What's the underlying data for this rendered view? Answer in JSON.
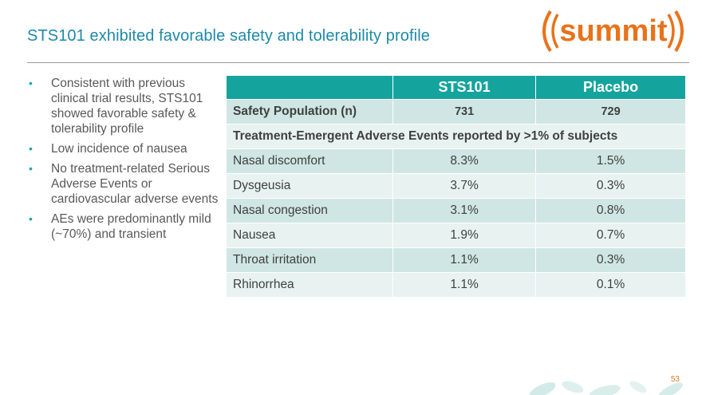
{
  "slide": {
    "title": "STS101 exhibited favorable safety and tolerability profile",
    "page_number": "53",
    "logo_text": "summit"
  },
  "bullets": [
    "Consistent with previous clinical trial results, STS101 showed favorable safety & tolerability profile",
    "Low incidence of nausea",
    "No treatment-related Serious Adverse Events or cardiovascular adverse events",
    "AEs were predominantly mild (~70%) and transient"
  ],
  "table": {
    "headers": [
      "",
      "STS101",
      "Placebo"
    ],
    "population": {
      "label": "Safety Population (n)",
      "sts101": "731",
      "placebo": "729"
    },
    "section_label": "Treatment-Emergent Adverse Events reported by >1% of subjects",
    "rows": [
      {
        "event": "Nasal discomfort",
        "sts101": "8.3%",
        "placebo": "1.5%"
      },
      {
        "event": "Dysgeusia",
        "sts101": "3.7%",
        "placebo": "0.3%"
      },
      {
        "event": "Nasal congestion",
        "sts101": "3.1%",
        "placebo": "0.8%"
      },
      {
        "event": "Nausea",
        "sts101": "1.9%",
        "placebo": "0.7%"
      },
      {
        "event": "Throat irritation",
        "sts101": "1.1%",
        "placebo": "0.3%"
      },
      {
        "event": "Rhinorrhea",
        "sts101": "1.1%",
        "placebo": "0.1%"
      }
    ]
  },
  "colors": {
    "title": "#1e8aa8",
    "header_teal": "#14a49d",
    "row_dark": "#cfe6e4",
    "row_light": "#e7f2f1",
    "logo_orange": "#e8731b",
    "logo_teal": "#1e8aa8"
  }
}
